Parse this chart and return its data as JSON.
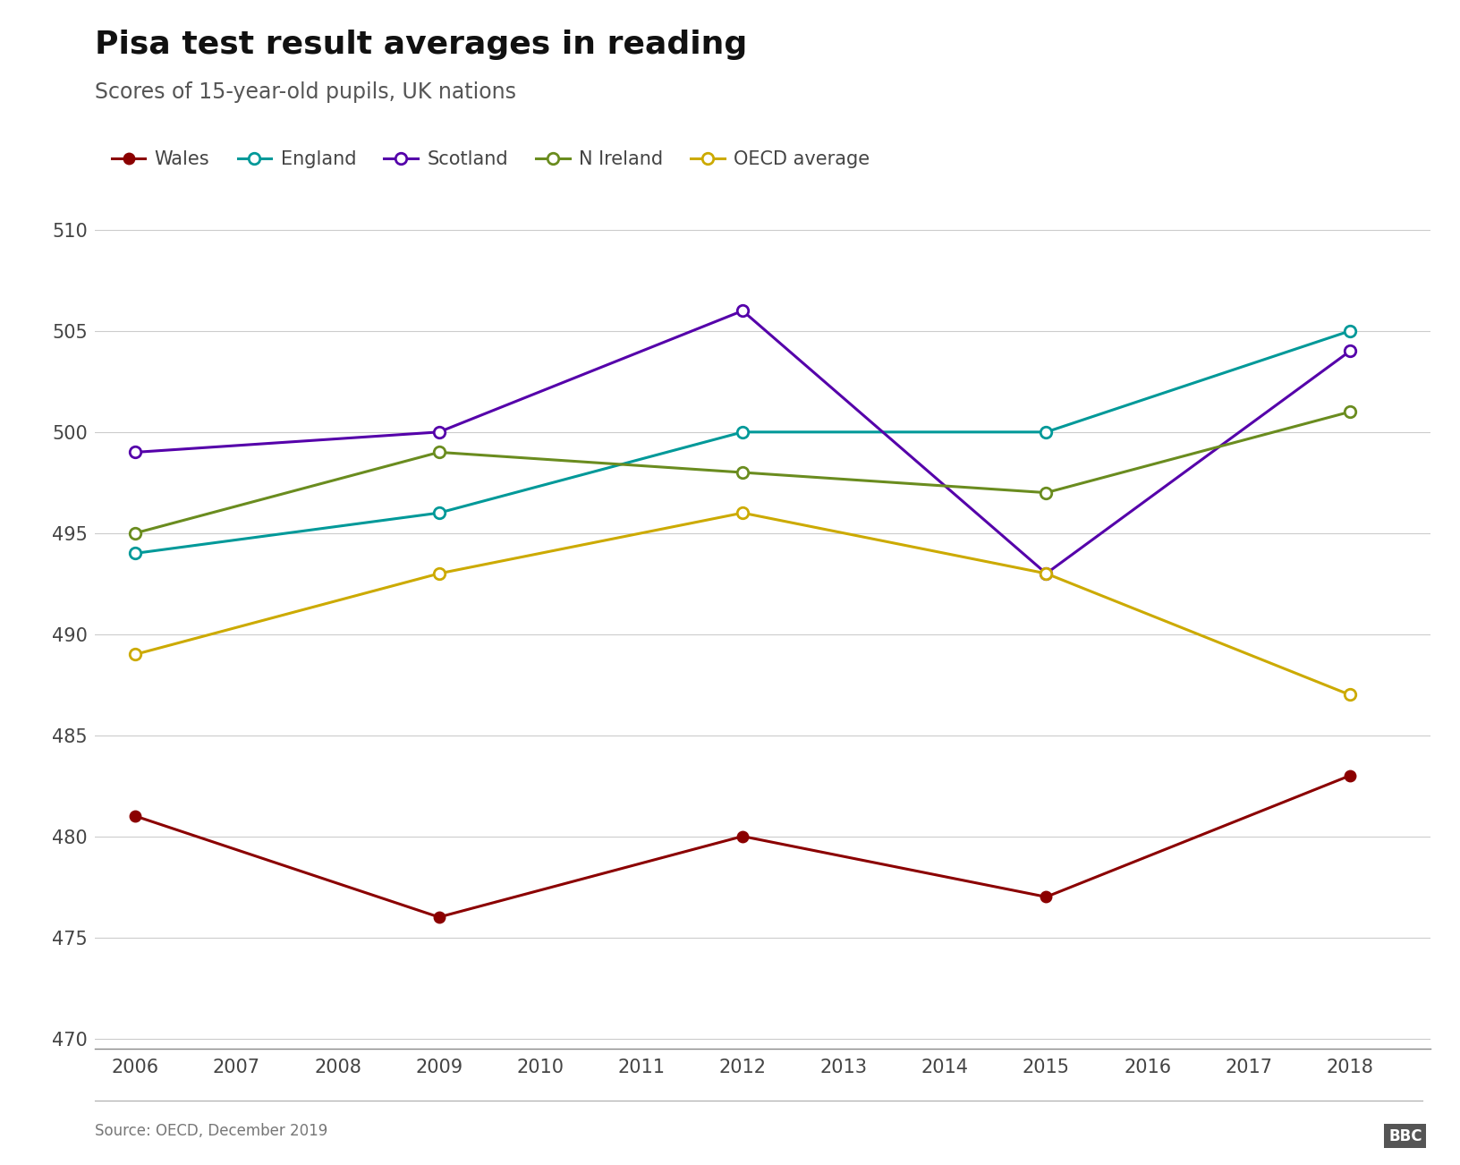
{
  "title": "Pisa test result averages in reading",
  "subtitle": "Scores of 15-year-old pupils, UK nations",
  "source": "Source: OECD, December 2019",
  "years": [
    2006,
    2009,
    2012,
    2015,
    2018
  ],
  "series": {
    "Wales": {
      "values": [
        481,
        476,
        480,
        477,
        483
      ],
      "color": "#8b0000",
      "marker_filled": true
    },
    "England": {
      "values": [
        494,
        496,
        500,
        500,
        505
      ],
      "color": "#009999",
      "marker_filled": false
    },
    "Scotland": {
      "values": [
        499,
        500,
        506,
        493,
        504
      ],
      "color": "#5500aa",
      "marker_filled": false
    },
    "N Ireland": {
      "values": [
        495,
        499,
        498,
        497,
        501
      ],
      "color": "#6a8c1f",
      "marker_filled": false
    },
    "OECD average": {
      "values": [
        489,
        493,
        496,
        493,
        487
      ],
      "color": "#ccaa00",
      "marker_filled": false
    }
  },
  "ylim": [
    469.5,
    511
  ],
  "yticks": [
    470,
    475,
    480,
    485,
    490,
    495,
    500,
    505,
    510
  ],
  "xticks": [
    2006,
    2007,
    2008,
    2009,
    2010,
    2011,
    2012,
    2013,
    2014,
    2015,
    2016,
    2017,
    2018
  ],
  "background_color": "#ffffff",
  "grid_color": "#cccccc",
  "title_fontsize": 26,
  "subtitle_fontsize": 17,
  "tick_fontsize": 15,
  "legend_fontsize": 15,
  "source_fontsize": 12,
  "linewidth": 2.2,
  "markersize": 9
}
